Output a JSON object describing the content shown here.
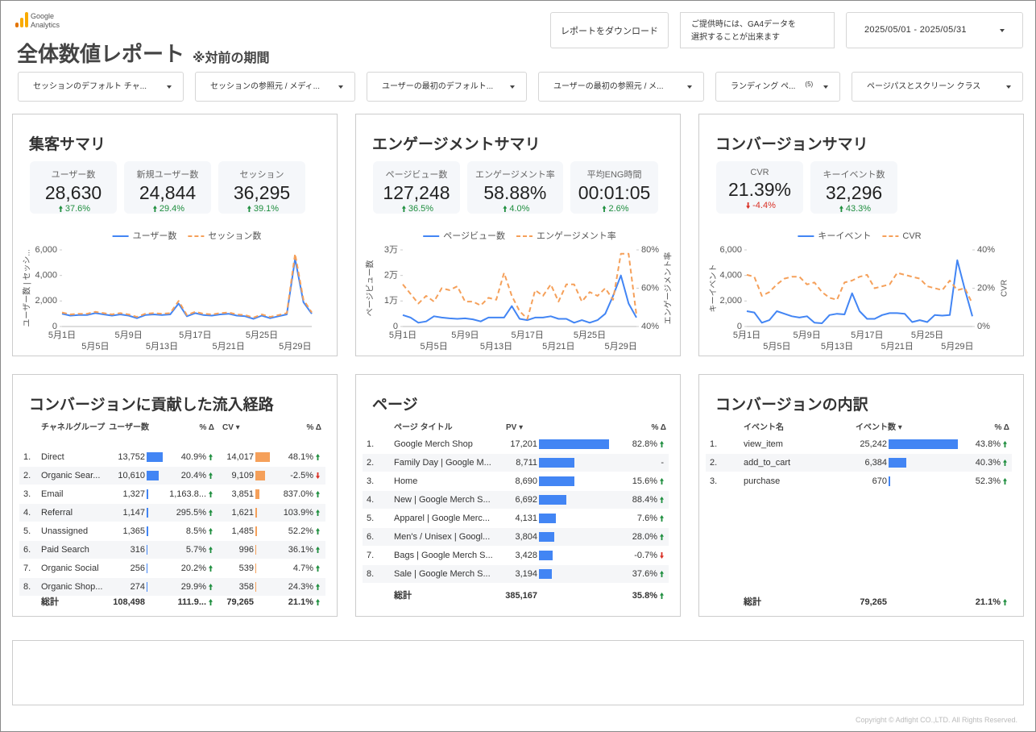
{
  "header": {
    "logo": [
      "Google",
      "Analytics"
    ],
    "title": "全体数値レポート",
    "subtitle": "※対前の期間",
    "download": "レポートをダウンロード",
    "note": [
      "ご提供時には、GA4データを",
      "選択することが出来ます"
    ],
    "date_range": "2025/05/01 - 2025/05/31"
  },
  "filters": [
    {
      "label": "セッションのデフォルト チャ..."
    },
    {
      "label": "セッションの参照元 / メディ..."
    },
    {
      "label": "ユーザーの最初のデフォルト..."
    },
    {
      "label": "ユーザーの最初の参照元 / メ..."
    },
    {
      "label": "ランディング ペ...",
      "badge": "(5)"
    },
    {
      "label": "ページパスとスクリーン クラス"
    }
  ],
  "acquisition": {
    "title": "集客サマリ",
    "kpis": [
      {
        "label": "ユーザー数",
        "value": "28,630",
        "delta": "37.6%"
      },
      {
        "label": "新規ユーザー数",
        "value": "24,844",
        "delta": "29.4%"
      },
      {
        "label": "セッション",
        "value": "36,295",
        "delta": "39.1%"
      }
    ]
  },
  "engagement": {
    "title": "エンゲージメントサマリ",
    "kpis": [
      {
        "label": "ページビュー数",
        "value": "127,248",
        "delta": "36.5%"
      },
      {
        "label": "エンゲージメント率",
        "value": "58.88%",
        "delta": "4.0%"
      },
      {
        "label": "平均ENG時間",
        "value": "00:01:05",
        "delta": "2.6%"
      }
    ]
  },
  "conversion": {
    "title": "コンバージョンサマリ",
    "kpis": [
      {
        "label": "CVR",
        "value": "21.39%",
        "delta": "-4.4%"
      },
      {
        "label": "キーイベント数",
        "value": "32,296",
        "delta": "43.3%"
      }
    ]
  },
  "chart_data": [
    {
      "type": "line",
      "categories": [
        "5月1日",
        null,
        null,
        null,
        "5月5日",
        null,
        null,
        null,
        "5月9日",
        null,
        null,
        null,
        "5月13日",
        null,
        null,
        null,
        "5月17日",
        null,
        null,
        null,
        "5月21日",
        null,
        null,
        null,
        "5月25日",
        null,
        null,
        null,
        "5月29日",
        null,
        null
      ],
      "ylabel": "ユーザー数 | セッシ...",
      "ylim": [
        0,
        6000
      ],
      "yticks": [
        0,
        {
          "value": 2000,
          "label": "2,000"
        },
        {
          "value": 4000,
          "label": "4,000"
        },
        {
          "value": 6000,
          "label": "6,000"
        }
      ],
      "series": [
        {
          "name": "ユーザー数",
          "color": "#4285f4",
          "dashed": false,
          "values": [
            1000,
            850,
            900,
            900,
            1050,
            950,
            850,
            950,
            850,
            650,
            900,
            950,
            900,
            950,
            1800,
            800,
            1050,
            900,
            850,
            950,
            1000,
            850,
            800,
            600,
            850,
            650,
            800,
            950,
            5300,
            1900,
            1000
          ]
        },
        {
          "name": "セッション数",
          "color": "#f5a05a",
          "dashed": true,
          "values": [
            1100,
            950,
            1000,
            1000,
            1150,
            1050,
            950,
            1050,
            950,
            750,
            1000,
            1050,
            1000,
            1050,
            2000,
            900,
            1150,
            1000,
            950,
            1050,
            1100,
            950,
            900,
            700,
            950,
            750,
            900,
            1050,
            5700,
            2100,
            1100
          ]
        }
      ]
    },
    {
      "type": "line",
      "categories": [
        "5月1日",
        null,
        null,
        null,
        "5月5日",
        null,
        null,
        null,
        "5月9日",
        null,
        null,
        null,
        "5月13日",
        null,
        null,
        null,
        "5月17日",
        null,
        null,
        null,
        "5月21日",
        null,
        null,
        null,
        "5月25日",
        null,
        null,
        null,
        "5月29日",
        null,
        null
      ],
      "ylabel": "ページビュー数",
      "y2label": "エンゲージメント率",
      "ylim": [
        0,
        30000
      ],
      "yticks": [
        0,
        {
          "value": 10000,
          "label": "1万"
        },
        {
          "value": 20000,
          "label": "2万"
        },
        {
          "value": 30000,
          "label": "3万"
        }
      ],
      "y2lim": [
        40,
        80
      ],
      "y2ticks": [
        {
          "value": 40,
          "label": "40%"
        },
        {
          "value": 60,
          "label": "60%"
        },
        {
          "value": 80,
          "label": "80%"
        }
      ],
      "series": [
        {
          "name": "ページビュー数",
          "color": "#4285f4",
          "dashed": false,
          "values": [
            4500,
            3500,
            1500,
            2000,
            4000,
            3500,
            3200,
            3000,
            3200,
            2800,
            2000,
            3500,
            3500,
            3500,
            8000,
            3000,
            2500,
            3500,
            3500,
            4000,
            3000,
            3000,
            1500,
            2500,
            1500,
            2500,
            5000,
            12000,
            20000,
            9000,
            3500
          ]
        },
        {
          "name": "エンゲージメント率",
          "color": "#f5a05a",
          "dashed": true,
          "axis": "y2",
          "values": [
            62,
            57,
            52,
            56,
            53,
            60,
            59,
            61,
            53,
            53,
            51,
            55,
            54,
            68,
            56,
            48,
            44,
            59,
            56,
            62,
            53,
            62,
            62,
            53,
            58,
            56,
            60,
            54,
            78,
            78,
            46
          ]
        }
      ]
    },
    {
      "type": "line",
      "categories": [
        "5月1日",
        null,
        null,
        null,
        "5月5日",
        null,
        null,
        null,
        "5月9日",
        null,
        null,
        null,
        "5月13日",
        null,
        null,
        null,
        "5月17日",
        null,
        null,
        null,
        "5月21日",
        null,
        null,
        null,
        "5月25日",
        null,
        null,
        null,
        "5月29日",
        null,
        null
      ],
      "ylabel": "キーイベント",
      "y2label": "CVR",
      "ylim": [
        0,
        6000
      ],
      "yticks": [
        0,
        {
          "value": 2000,
          "label": "2,000"
        },
        {
          "value": 4000,
          "label": "4,000"
        },
        {
          "value": 6000,
          "label": "6,000"
        }
      ],
      "y2lim": [
        0,
        40
      ],
      "y2ticks": [
        {
          "value": 0,
          "label": "0%"
        },
        {
          "value": 20,
          "label": "20%"
        },
        {
          "value": 40,
          "label": "40%"
        }
      ],
      "series": [
        {
          "name": "キーイベント",
          "color": "#4285f4",
          "dashed": false,
          "values": [
            1200,
            1100,
            300,
            500,
            1200,
            1000,
            800,
            700,
            800,
            300,
            250,
            900,
            1000,
            950,
            2600,
            1200,
            600,
            600,
            900,
            1050,
            1050,
            1000,
            350,
            500,
            350,
            900,
            850,
            900,
            5200,
            2900,
            800
          ]
        },
        {
          "name": "CVR",
          "color": "#f5a05a",
          "dashed": true,
          "axis": "y2",
          "values": [
            27,
            26,
            16,
            18,
            22,
            25,
            26,
            26,
            22,
            23,
            18,
            15,
            14,
            23,
            24,
            26,
            27,
            20,
            21,
            22,
            28,
            27,
            26,
            25,
            21,
            20,
            19,
            24,
            19,
            20,
            12
          ]
        }
      ]
    }
  ],
  "channels": {
    "title": "コンバージョンに貢献した流入経路",
    "headers": [
      "チャネルグループ",
      "ユーザー数",
      "% Δ",
      "CV ▾",
      "% Δ"
    ],
    "rows": [
      {
        "rank": "1.",
        "name": "Direct",
        "users": 13752,
        "users_label": "13,752",
        "users_delta": "40.9%",
        "cv": 14017,
        "cv_label": "14,017",
        "cv_delta": "48.1%"
      },
      {
        "rank": "2.",
        "name": "Organic Sear...",
        "users": 10610,
        "users_label": "10,610",
        "users_delta": "20.4%",
        "cv": 9109,
        "cv_label": "9,109",
        "cv_delta": "-2.5%"
      },
      {
        "rank": "3.",
        "name": "Email",
        "users": 1327,
        "users_label": "1,327",
        "users_delta": "1,163.8...",
        "cv": 3851,
        "cv_label": "3,851",
        "cv_delta": "837.0%"
      },
      {
        "rank": "4.",
        "name": "Referral",
        "users": 1147,
        "users_label": "1,147",
        "users_delta": "295.5%",
        "cv": 1621,
        "cv_label": "1,621",
        "cv_delta": "103.9%"
      },
      {
        "rank": "5.",
        "name": "Unassigned",
        "users": 1365,
        "users_label": "1,365",
        "users_delta": "8.5%",
        "cv": 1485,
        "cv_label": "1,485",
        "cv_delta": "52.2%"
      },
      {
        "rank": "6.",
        "name": "Paid Search",
        "users": 316,
        "users_label": "316",
        "users_delta": "5.7%",
        "cv": 996,
        "cv_label": "996",
        "cv_delta": "36.1%"
      },
      {
        "rank": "7.",
        "name": "Organic Social",
        "users": 256,
        "users_label": "256",
        "users_delta": "20.2%",
        "cv": 539,
        "cv_label": "539",
        "cv_delta": "4.7%"
      },
      {
        "rank": "8.",
        "name": "Organic Shop...",
        "users": 274,
        "users_label": "274",
        "users_delta": "29.9%",
        "cv": 358,
        "cv_label": "358",
        "cv_delta": "24.3%"
      }
    ],
    "total": {
      "label": "総計",
      "users_label": "108,498",
      "users_delta": "111.9...",
      "cv_label": "79,265",
      "cv_delta": "21.1%"
    }
  },
  "pages": {
    "title": "ページ",
    "headers": [
      "ページ タイトル",
      "PV ▾",
      "% Δ"
    ],
    "rows": [
      {
        "rank": "1.",
        "name": "Google Merch Shop",
        "pv": 17201,
        "pv_label": "17,201",
        "delta": "82.8%"
      },
      {
        "rank": "2.",
        "name": "Family Day | Google M...",
        "pv": 8711,
        "pv_label": "8,711",
        "delta": "-"
      },
      {
        "rank": "3.",
        "name": "Home",
        "pv": 8690,
        "pv_label": "8,690",
        "delta": "15.6%"
      },
      {
        "rank": "4.",
        "name": "New | Google Merch S...",
        "pv": 6692,
        "pv_label": "6,692",
        "delta": "88.4%"
      },
      {
        "rank": "5.",
        "name": "Apparel | Google Merc...",
        "pv": 4131,
        "pv_label": "4,131",
        "delta": "7.6%"
      },
      {
        "rank": "6.",
        "name": "Men's / Unisex | Googl...",
        "pv": 3804,
        "pv_label": "3,804",
        "delta": "28.0%"
      },
      {
        "rank": "7.",
        "name": "Bags | Google Merch S...",
        "pv": 3428,
        "pv_label": "3,428",
        "delta": "-0.7%"
      },
      {
        "rank": "8.",
        "name": "Sale | Google Merch S...",
        "pv": 3194,
        "pv_label": "3,194",
        "delta": "37.6%"
      }
    ],
    "total": {
      "label": "総計",
      "pv_label": "385,167",
      "delta": "35.8%"
    }
  },
  "events": {
    "title": "コンバージョンの内訳",
    "headers": [
      "イベント名",
      "イベント数 ▾",
      "% Δ"
    ],
    "rows": [
      {
        "rank": "1.",
        "name": "view_item",
        "count": 25242,
        "count_label": "25,242",
        "delta": "43.8%"
      },
      {
        "rank": "2.",
        "name": "add_to_cart",
        "count": 6384,
        "count_label": "6,384",
        "delta": "40.3%"
      },
      {
        "rank": "3.",
        "name": "purchase",
        "count": 670,
        "count_label": "670",
        "delta": "52.3%"
      }
    ],
    "total": {
      "label": "総計",
      "count_label": "79,265",
      "delta": "21.1%"
    }
  },
  "footer": "Copyright © Adfight CO.,LTD. All Rights Reserved."
}
